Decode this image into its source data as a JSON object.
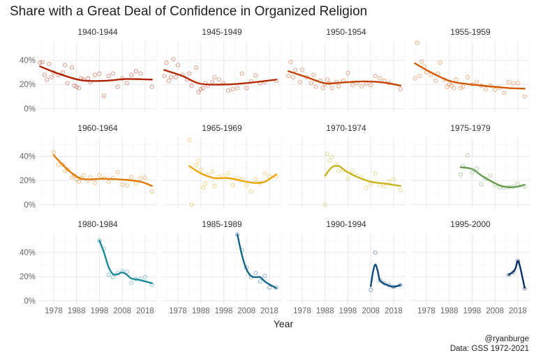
{
  "chart_data": {
    "type": "scatter",
    "title": "Share with a Great Deal of Confidence in Organized Religion",
    "xlabel": "Year",
    "ylabel": "",
    "xlim": [
      1971.3,
      2023.2
    ],
    "ylim": [
      -3,
      56
    ],
    "x_ticks": [
      1978,
      1988,
      1998,
      2008,
      2018
    ],
    "x_tick_labels": [
      "1978",
      "1988",
      "1998",
      "2008",
      "2018"
    ],
    "y_ticks": [
      0,
      20,
      40
    ],
    "y_tick_labels": [
      "0%",
      "20%",
      "40%"
    ],
    "grid": true,
    "legend": "none",
    "caption": [
      "@ryanburge",
      "Data: GSS 1972-2021"
    ],
    "panels": [
      {
        "label": "1940-1944",
        "color": "#b02000",
        "x": [
          1972,
          1973,
          1974,
          1975,
          1976,
          1977,
          1978,
          1980,
          1982,
          1983,
          1984,
          1986,
          1987,
          1988,
          1989,
          1990,
          1991,
          1993,
          1994,
          1996,
          1998,
          2000,
          2002,
          2004,
          2006,
          2008,
          2010,
          2012,
          2014,
          2016,
          2021
        ],
        "y": [
          38,
          38.5,
          28,
          24,
          37,
          26,
          30,
          28,
          30,
          36,
          21,
          34,
          19,
          18,
          17,
          25,
          24,
          25,
          22,
          28,
          29,
          10.5,
          27,
          29,
          18,
          25,
          21,
          28,
          31,
          29,
          18
        ],
        "trend_x": [
          1972,
          1980,
          1990,
          2000,
          2010,
          2021
        ],
        "trend_y": [
          35,
          29,
          23.5,
          23,
          24.5,
          24
        ]
      },
      {
        "label": "1945-1949",
        "color": "#b52a00",
        "x": [
          1972,
          1973,
          1974,
          1975,
          1976,
          1977,
          1978,
          1980,
          1982,
          1983,
          1984,
          1986,
          1987,
          1988,
          1989,
          1990,
          1991,
          1993,
          1994,
          1996,
          1998,
          2000,
          2002,
          2004,
          2006,
          2008,
          2010,
          2012,
          2014,
          2016,
          2021
        ],
        "y": [
          27,
          38,
          23,
          26,
          41,
          26,
          36,
          28,
          24,
          29,
          19,
          34,
          13.5,
          16,
          17,
          21,
          19,
          22,
          26,
          24,
          21,
          15,
          16,
          17,
          29,
          17,
          22.5,
          27.5,
          21,
          22,
          23
        ],
        "trend_x": [
          1972,
          1980,
          1988,
          2000,
          2010,
          2021
        ],
        "trend_y": [
          32,
          27,
          20.5,
          20,
          21.5,
          24
        ]
      },
      {
        "label": "1950-1954",
        "color": "#c64000",
        "x": [
          1972,
          1973,
          1974,
          1975,
          1977,
          1978,
          1980,
          1982,
          1983,
          1984,
          1986,
          1987,
          1988,
          1989,
          1990,
          1991,
          1993,
          1994,
          1996,
          1998,
          2000,
          2002,
          2004,
          2006,
          2008,
          2010,
          2012,
          2014,
          2016,
          2021
        ],
        "y": [
          27,
          38.5,
          26,
          32,
          22,
          32,
          26,
          21,
          28,
          18,
          23,
          17,
          20,
          24,
          21,
          17,
          22,
          18.5,
          23,
          29.5,
          19.5,
          21,
          18.5,
          20.5,
          19.5,
          27,
          25,
          23,
          21,
          16
        ],
        "trend_x": [
          1972,
          1980,
          1988,
          1995,
          2005,
          2014,
          2021
        ],
        "trend_y": [
          31,
          26,
          21,
          21.5,
          22.5,
          21.5,
          19
        ]
      },
      {
        "label": "1955-1959",
        "color": "#d45800",
        "x": [
          1973,
          1974,
          1975,
          1976,
          1977,
          1978,
          1980,
          1982,
          1983,
          1984,
          1986,
          1987,
          1988,
          1989,
          1990,
          1991,
          1993,
          1994,
          1996,
          1998,
          2000,
          2002,
          2004,
          2006,
          2008,
          2010,
          2012,
          2014,
          2016,
          2018,
          2021
        ],
        "y": [
          25,
          54.5,
          27,
          39,
          35,
          30,
          28,
          23,
          29,
          38,
          24,
          18,
          20,
          19,
          17,
          24,
          17,
          18,
          26,
          20,
          22,
          19,
          16,
          19,
          15.5,
          17,
          13,
          22,
          21,
          21,
          10
        ],
        "trend_x": [
          1973,
          1980,
          1988,
          1995,
          2005,
          2014,
          2021
        ],
        "trend_y": [
          37.5,
          30,
          23,
          20.5,
          18.5,
          17,
          16.5
        ]
      },
      {
        "label": "1960-1964",
        "color": "#e07a00",
        "x": [
          1978,
          1980,
          1982,
          1983,
          1984,
          1986,
          1987,
          1988,
          1989,
          1990,
          1991,
          1993,
          1994,
          1996,
          1998,
          2000,
          2002,
          2004,
          2006,
          2008,
          2010,
          2012,
          2014,
          2016,
          2018,
          2021
        ],
        "y": [
          43.5,
          33,
          33,
          28,
          29,
          22.5,
          24,
          21,
          19,
          22,
          24.5,
          20,
          22.5,
          18,
          24.5,
          22,
          19,
          22,
          27,
          16.5,
          16,
          23,
          17.5,
          22,
          22.5,
          11
        ],
        "trend_x": [
          1978,
          1982,
          1986,
          1990,
          1995,
          2000,
          2010,
          2016,
          2021
        ],
        "trend_y": [
          41,
          33,
          26,
          21.5,
          21,
          21.5,
          20.5,
          19,
          15.5
        ]
      },
      {
        "label": "1965-1969",
        "color": "#eca400",
        "x": [
          1983,
          1984,
          1986,
          1987,
          1988,
          1989,
          1990,
          1991,
          1993,
          1994,
          1996,
          1998,
          2000,
          2002,
          2004,
          2006,
          2008,
          2010,
          2012,
          2014,
          2016,
          2018,
          2021
        ],
        "y": [
          53.5,
          0,
          33,
          36.5,
          29,
          14,
          17.5,
          24.5,
          27.5,
          15.5,
          23,
          23.5,
          26,
          16,
          22,
          21,
          16,
          11,
          21,
          17.5,
          26,
          23.5,
          23.5
        ],
        "trend_x": [
          1983,
          1988,
          1994,
          2000,
          2008,
          2012,
          2016,
          2021
        ],
        "trend_y": [
          32,
          26,
          22,
          22,
          19,
          18,
          19,
          25
        ]
      },
      {
        "label": "1970-1974",
        "color": "#c8b41a",
        "x": [
          1988,
          1989,
          1990,
          1991,
          1993,
          1994,
          1996,
          1998,
          2000,
          2002,
          2004,
          2006,
          2008,
          2010,
          2012,
          2014,
          2016,
          2018,
          2021
        ],
        "y": [
          0,
          42,
          36.5,
          39.5,
          33,
          28,
          28.5,
          21.5,
          28,
          24,
          22.5,
          14,
          17,
          26,
          16,
          15,
          19,
          21,
          12
        ],
        "trend_x": [
          1988,
          1991,
          1994,
          1997,
          2002,
          2008,
          2014,
          2021
        ],
        "trend_y": [
          24,
          31,
          32,
          28,
          23,
          19,
          17.5,
          15.5
        ]
      },
      {
        "label": "1975-1979",
        "color": "#689c50",
        "x": [
          1993,
          1994,
          1996,
          1998,
          2000,
          2002,
          2004,
          2006,
          2008,
          2010,
          2012,
          2014,
          2016,
          2018,
          2021
        ],
        "y": [
          25,
          32,
          41,
          26.5,
          30,
          17,
          21.5,
          24,
          16.5,
          14,
          14,
          14.5,
          15,
          17,
          15
        ],
        "trend_x": [
          1993,
          1998,
          2003,
          2010,
          2014,
          2018,
          2021
        ],
        "trend_y": [
          31,
          29.5,
          23,
          16,
          14.5,
          15,
          16.5
        ]
      },
      {
        "label": "1980-1984",
        "color": "#1a8a98",
        "x": [
          1998,
          2000,
          2002,
          2004,
          2006,
          2008,
          2010,
          2012,
          2014,
          2016,
          2018,
          2021
        ],
        "y": [
          50,
          43,
          21.5,
          19.5,
          23,
          24.5,
          24,
          15,
          18,
          18,
          19.5,
          13
        ],
        "trend_x": [
          1998,
          2000,
          2002,
          2004,
          2006,
          2008,
          2010,
          2012,
          2016,
          2021
        ],
        "trend_y": [
          50,
          40,
          28,
          22,
          22,
          23.5,
          21.5,
          18.5,
          17,
          14.5
        ]
      },
      {
        "label": "1985-1989",
        "color": "#14648a",
        "x": [
          2004,
          2006,
          2008,
          2010,
          2012,
          2014,
          2016,
          2018,
          2021
        ],
        "y": [
          55,
          42,
          27.5,
          19.5,
          23,
          16,
          20.5,
          11,
          11
        ],
        "trend_x": [
          2004,
          2006,
          2008,
          2010,
          2012,
          2014,
          2016,
          2018,
          2021
        ],
        "trend_y": [
          55,
          38,
          26,
          20.5,
          19.5,
          19.5,
          16,
          13.5,
          10.5
        ]
      },
      {
        "label": "1990-1994",
        "color": "#0d4a7e",
        "x": [
          2008,
          2010,
          2012,
          2014,
          2016,
          2018,
          2021
        ],
        "y": [
          9,
          40,
          17,
          14.5,
          13,
          11.5,
          13
        ],
        "trend_x": [
          2008,
          2009,
          2010,
          2011,
          2012,
          2014,
          2016,
          2018,
          2021
        ],
        "trend_y": [
          12,
          24,
          30,
          25,
          17,
          14,
          12.5,
          11.5,
          13
        ]
      },
      {
        "label": "1995-2000",
        "color": "#0b3068",
        "x": [
          2014,
          2016,
          2018,
          2021
        ],
        "y": [
          21.5,
          23.5,
          33,
          10
        ],
        "trend_x": [
          2014,
          2016,
          2017,
          2018,
          2019,
          2021
        ],
        "trend_y": [
          21.5,
          24,
          27,
          33,
          28,
          10.5
        ]
      }
    ]
  }
}
